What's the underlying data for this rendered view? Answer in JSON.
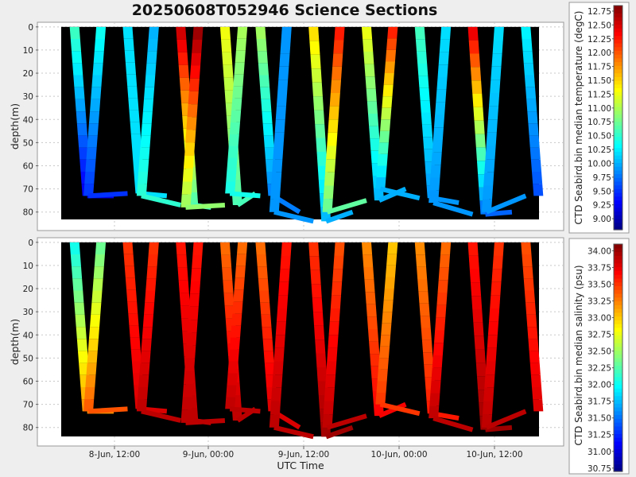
{
  "title": "20250608T052946 Science Sections",
  "x_axis_label": "UTC Time",
  "x_ticks": [
    "8-Jun, 12:00",
    "9-Jun, 00:00",
    "9-Jun, 12:00",
    "10-Jun, 00:00",
    "10-Jun, 12:00"
  ],
  "colors": {
    "background": "#eeeeee",
    "plot_bg": "#ffffff",
    "data_area": "#000000",
    "grid": "#c8c8c8"
  },
  "chart_data": [
    {
      "type": "heatmap",
      "ylabel": "depth(m)",
      "ylim": [
        88,
        -2
      ],
      "y_ticks": [
        0,
        10,
        20,
        30,
        40,
        50,
        60,
        70,
        80
      ],
      "colorbar": {
        "label": "CTD Seabird.bin median temperature (degC)",
        "range": [
          8.8,
          12.85
        ],
        "ticks": [
          "12.75",
          "12.50",
          "12.25",
          "12.00",
          "11.75",
          "11.50",
          "11.25",
          "11.00",
          "10.75",
          "10.50",
          "10.25",
          "10.00",
          "9.75",
          "9.50",
          "9.25",
          "9.00"
        ],
        "colormap": "jet"
      },
      "profiles": [
        {
          "t": 0.15,
          "bottom": 73,
          "top_value": 10.6,
          "bottom_value": 9.2
        },
        {
          "t": 0.45,
          "bottom": 73,
          "top_value": 10.4,
          "bottom_value": 9.5
        },
        {
          "t": 0.75,
          "bottom": 72,
          "top_value": 10.2,
          "bottom_value": 10.2
        },
        {
          "t": 1.05,
          "bottom": 73,
          "top_value": 10.0,
          "bottom_value": 10.5
        },
        {
          "t": 1.35,
          "bottom": 77,
          "top_value": 12.6,
          "bottom_value": 10.6
        },
        {
          "t": 1.55,
          "bottom": 78,
          "top_value": 12.8,
          "bottom_value": 10.9
        },
        {
          "t": 1.85,
          "bottom": 77,
          "top_value": 11.3,
          "bottom_value": 10.6
        },
        {
          "t": 2.05,
          "bottom": 72,
          "top_value": 11.0,
          "bottom_value": 10.4
        },
        {
          "t": 2.25,
          "bottom": 73,
          "top_value": 11.0,
          "bottom_value": 9.8
        },
        {
          "t": 2.55,
          "bottom": 80,
          "top_value": 9.9,
          "bottom_value": 9.9
        },
        {
          "t": 2.85,
          "bottom": 84,
          "top_value": 11.5,
          "bottom_value": 10.0
        },
        {
          "t": 3.15,
          "bottom": 80,
          "top_value": 12.3,
          "bottom_value": 10.7
        },
        {
          "t": 3.45,
          "bottom": 75,
          "top_value": 11.3,
          "bottom_value": 10.0
        },
        {
          "t": 3.75,
          "bottom": 70,
          "top_value": 12.3,
          "bottom_value": 10.0
        },
        {
          "t": 4.05,
          "bottom": 74,
          "top_value": 10.6,
          "bottom_value": 9.9
        },
        {
          "t": 4.35,
          "bottom": 76,
          "top_value": 10.2,
          "bottom_value": 9.9
        },
        {
          "t": 4.65,
          "bottom": 81,
          "top_value": 12.5,
          "bottom_value": 9.7
        },
        {
          "t": 4.95,
          "bottom": 80,
          "top_value": 10.2,
          "bottom_value": 9.9
        },
        {
          "t": 5.25,
          "bottom": 73,
          "top_value": 10.3,
          "bottom_value": 9.6
        }
      ]
    },
    {
      "type": "heatmap",
      "ylabel": "depth(m)",
      "ylim": [
        88,
        -2
      ],
      "y_ticks": [
        0,
        10,
        20,
        30,
        40,
        50,
        60,
        70,
        80
      ],
      "colorbar": {
        "label": "CTD Seabird.bin median salinity (psu)",
        "range": [
          30.7,
          34.1
        ],
        "ticks": [
          "34.00",
          "33.75",
          "33.50",
          "33.25",
          "33.00",
          "32.75",
          "32.50",
          "32.25",
          "32.00",
          "31.75",
          "31.50",
          "31.25",
          "31.00",
          "30.75"
        ],
        "colormap": "jet"
      },
      "profiles": [
        {
          "t": 0.15,
          "bottom": 73,
          "top_value": 32.0,
          "bottom_value": 33.2
        },
        {
          "t": 0.45,
          "bottom": 73,
          "top_value": 32.3,
          "bottom_value": 33.4
        },
        {
          "t": 0.75,
          "bottom": 72,
          "top_value": 33.5,
          "bottom_value": 33.8
        },
        {
          "t": 1.05,
          "bottom": 73,
          "top_value": 33.5,
          "bottom_value": 33.9
        },
        {
          "t": 1.35,
          "bottom": 77,
          "top_value": 33.6,
          "bottom_value": 33.9
        },
        {
          "t": 1.55,
          "bottom": 78,
          "top_value": 33.6,
          "bottom_value": 33.9
        },
        {
          "t": 1.85,
          "bottom": 77,
          "top_value": 33.3,
          "bottom_value": 33.9
        },
        {
          "t": 2.05,
          "bottom": 72,
          "top_value": 33.3,
          "bottom_value": 33.9
        },
        {
          "t": 2.25,
          "bottom": 73,
          "top_value": 33.3,
          "bottom_value": 33.8
        },
        {
          "t": 2.55,
          "bottom": 80,
          "top_value": 33.6,
          "bottom_value": 33.9
        },
        {
          "t": 2.85,
          "bottom": 84,
          "top_value": 33.5,
          "bottom_value": 34.0
        },
        {
          "t": 3.15,
          "bottom": 80,
          "top_value": 33.4,
          "bottom_value": 33.9
        },
        {
          "t": 3.45,
          "bottom": 75,
          "top_value": 33.2,
          "bottom_value": 33.7
        },
        {
          "t": 3.75,
          "bottom": 70,
          "top_value": 33.0,
          "bottom_value": 33.5
        },
        {
          "t": 4.05,
          "bottom": 74,
          "top_value": 33.2,
          "bottom_value": 33.6
        },
        {
          "t": 4.35,
          "bottom": 76,
          "top_value": 33.3,
          "bottom_value": 33.9
        },
        {
          "t": 4.65,
          "bottom": 81,
          "top_value": 33.6,
          "bottom_value": 34.0
        },
        {
          "t": 4.95,
          "bottom": 80,
          "top_value": 33.5,
          "bottom_value": 33.9
        },
        {
          "t": 5.25,
          "bottom": 73,
          "top_value": 33.4,
          "bottom_value": 33.8
        }
      ]
    }
  ]
}
